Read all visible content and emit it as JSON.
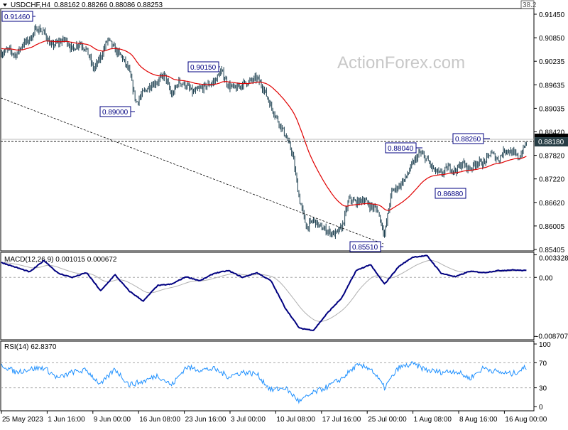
{
  "header": {
    "symbol": "USDCHF,H4",
    "ohlc": "0.88162 0.88266 0.88086 0.88253",
    "corner_value": "38.2"
  },
  "watermark": "ActionForex.com",
  "colors": {
    "bars": "#1c3f4f",
    "moving_average": "#e00000",
    "macd": "#000080",
    "signal": "#b0b0b0",
    "rsi": "#1e90ff",
    "current_price_box": "#263d45"
  },
  "chart_data": [
    {
      "type": "ohlc-bar",
      "name": "price",
      "ylim": [
        0.85405,
        0.9145
      ],
      "y_ticks": [
        "0.91450",
        "0.90850",
        "0.90235",
        "0.89635",
        "0.89035",
        "0.88420",
        "0.87820",
        "0.87220",
        "0.86620",
        "0.86005",
        "0.85405"
      ],
      "current_price": "0.88180",
      "x_ticks": [
        "25 May 2023",
        "1 Jun 16:00",
        "9 Jun 00:00",
        "16 Jun 08:00",
        "23 Jun 16:00",
        "3 Jul 00:00",
        "10 Jul 08:00",
        "17 Jul 16:00",
        "25 Jul 00:00",
        "1 Aug 08:00",
        "8 Aug 16:00",
        "16 Aug 00:00"
      ],
      "close_sampled_evenly": [
        0.9045,
        0.9054,
        0.9039,
        0.9068,
        0.9081,
        0.9109,
        0.9099,
        0.9063,
        0.9072,
        0.9081,
        0.9054,
        0.9072,
        0.9054,
        0.9003,
        0.9035,
        0.9081,
        0.9054,
        0.9035,
        0.8999,
        0.8917,
        0.8944,
        0.8962,
        0.8972,
        0.899,
        0.8935,
        0.8972,
        0.8962,
        0.8944,
        0.8953,
        0.8962,
        0.8972,
        0.8999,
        0.8962,
        0.8953,
        0.8966,
        0.8972,
        0.8981,
        0.8953,
        0.8908,
        0.8871,
        0.8835,
        0.8789,
        0.867,
        0.8597,
        0.8616,
        0.8597,
        0.8588,
        0.8579,
        0.8597,
        0.867,
        0.8661,
        0.867,
        0.8652,
        0.8643,
        0.8579,
        0.8689,
        0.8703,
        0.8725,
        0.8762,
        0.8789,
        0.8771,
        0.8743,
        0.8734,
        0.8752,
        0.8743,
        0.8762,
        0.8747,
        0.8765,
        0.8762,
        0.8789,
        0.8771,
        0.8798,
        0.8789,
        0.8776,
        0.8816
      ],
      "annotations": [
        {
          "label": "0.91460",
          "value": 0.9146
        },
        {
          "label": "0.89000",
          "value": 0.89
        },
        {
          "label": "0.90150",
          "value": 0.9015
        },
        {
          "label": "0.85510",
          "value": 0.8551
        },
        {
          "label": "0.88040",
          "value": 0.8804
        },
        {
          "label": "0.86880",
          "value": 0.8688
        },
        {
          "label": "0.88260",
          "value": 0.8826
        }
      ],
      "horizontal_level": 0.8818,
      "trendline": [
        0.893,
        0.8555
      ]
    },
    {
      "type": "line",
      "title": "MACD(12,26,9) 0.001015 0.000672",
      "y_ticks": [
        "0.003328",
        "0.00",
        "-0.008707"
      ],
      "ylim": [
        -0.0092,
        0.0037
      ],
      "macd_sampled_evenly": [
        0.0022,
        0.0015,
        0.0008,
        0.0025,
        0.0006,
        0.0,
        0.0007,
        -0.002,
        0.0004,
        -0.002,
        -0.0035,
        -0.0012,
        -0.001,
        0.0001,
        -0.0005,
        0.0006,
        0.001,
        0.0,
        0.0007,
        -0.0005,
        -0.0045,
        -0.0075,
        -0.0078,
        -0.0052,
        -0.003,
        0.001,
        0.0019,
        -0.001,
        0.0016,
        0.003,
        0.0032,
        0.0006,
        0.0001,
        0.0009,
        0.0007,
        0.001,
        0.0011,
        0.001
      ]
    },
    {
      "type": "line",
      "title": "RSI(14) 62.8370",
      "y_ticks": [
        "100",
        "70",
        "30",
        "0"
      ],
      "ylim": [
        0,
        100
      ],
      "levels": [
        70,
        30
      ],
      "rsi_sampled_evenly": [
        67,
        55,
        60,
        62,
        45,
        55,
        58,
        35,
        60,
        35,
        40,
        50,
        34,
        63,
        59,
        60,
        48,
        55,
        52,
        26,
        30,
        8,
        22,
        32,
        45,
        65,
        62,
        30,
        62,
        68,
        58,
        55,
        57,
        45,
        62,
        55,
        52,
        63
      ]
    }
  ]
}
